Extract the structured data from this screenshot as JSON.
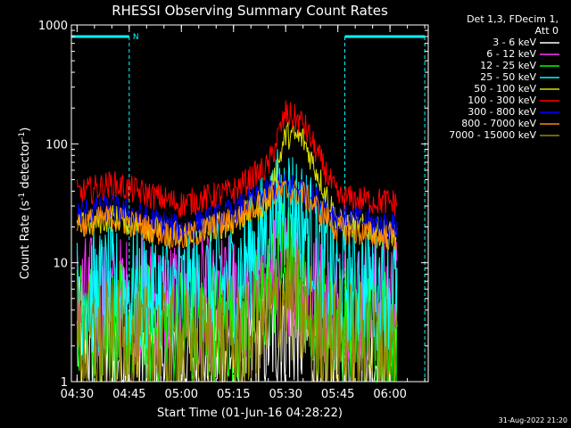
{
  "chart_data": {
    "type": "line",
    "title": "RHESSI Observing Summary Count Rates",
    "xlabel": "Start Time (01-Jun-16 04:28:22)",
    "ylabel_prefix": "Count Rate (s",
    "ylabel_mid": " detector",
    "ylabel_suffix": ")",
    "ylabel_exp": "-1",
    "yscale": "log",
    "ylim": [
      1,
      1000
    ],
    "xlim": [
      "04:28:22",
      "06:11"
    ],
    "x_tick_labels": [
      "04:30",
      "04:45",
      "05:00",
      "05:15",
      "05:30",
      "05:45",
      "06:00"
    ],
    "y_tick_labels": [
      "1",
      "10",
      "100",
      "1000"
    ],
    "y_ticks": [
      1,
      10,
      100,
      1000
    ],
    "legend_header": [
      "Det 1,3, FDecim 1,",
      "Att 0"
    ],
    "legend_placement": "right",
    "night_marker": "N",
    "night_intervals": [
      [
        "04:28:22",
        "04:45"
      ],
      [
        "05:47",
        "06:10"
      ]
    ],
    "series": [
      {
        "name": "3 - 6 keV",
        "color": "#ffffff",
        "points": [
          [
            "04:30",
            2.2
          ],
          [
            "05:00",
            1.6
          ],
          [
            "05:20",
            2.0
          ],
          [
            "05:30",
            3.0
          ],
          [
            "05:40",
            2.0
          ],
          [
            "06:02",
            1.5
          ]
        ]
      },
      {
        "name": "6 - 12 keV",
        "color": "#ff33ff",
        "points": [
          [
            "04:30",
            5.0
          ],
          [
            "05:00",
            4.8
          ],
          [
            "05:20",
            5.0
          ],
          [
            "05:30",
            9.0
          ],
          [
            "05:40",
            5.0
          ],
          [
            "06:02",
            5.0
          ]
        ]
      },
      {
        "name": "12 - 25 keV",
        "color": "#00ff00",
        "points": [
          [
            "04:30",
            3.0
          ],
          [
            "05:00",
            2.9
          ],
          [
            "05:20",
            3.2
          ],
          [
            "05:30",
            11.0
          ],
          [
            "05:40",
            3.5
          ],
          [
            "06:02",
            3.0
          ]
        ]
      },
      {
        "name": "25 - 50 keV",
        "color": "#00ffff",
        "points": [
          [
            "04:30",
            5.8
          ],
          [
            "05:00",
            5.6
          ],
          [
            "05:15",
            7.0
          ],
          [
            "05:25",
            20.0
          ],
          [
            "05:30",
            35.0
          ],
          [
            "05:35",
            22.0
          ],
          [
            "05:45",
            7.0
          ],
          [
            "06:02",
            6.0
          ]
        ]
      },
      {
        "name": "50 - 100 keV",
        "color": "#dddd00",
        "points": [
          [
            "04:30",
            20.0
          ],
          [
            "04:40",
            24.0
          ],
          [
            "05:00",
            17.0
          ],
          [
            "05:15",
            22.0
          ],
          [
            "05:25",
            33.0
          ],
          [
            "05:30",
            120.0
          ],
          [
            "05:35",
            110.0
          ],
          [
            "05:45",
            22.0
          ],
          [
            "06:02",
            17.0
          ]
        ]
      },
      {
        "name": "100 - 300 keV",
        "color": "#ff0000",
        "points": [
          [
            "04:30",
            38.0
          ],
          [
            "04:40",
            46.0
          ],
          [
            "05:00",
            31.0
          ],
          [
            "05:15",
            40.0
          ],
          [
            "05:25",
            65.0
          ],
          [
            "05:30",
            180.0
          ],
          [
            "05:35",
            150.0
          ],
          [
            "05:45",
            35.0
          ],
          [
            "06:02",
            32.0
          ]
        ]
      },
      {
        "name": "300 - 800 keV",
        "color": "#0000ff",
        "points": [
          [
            "04:30",
            26.0
          ],
          [
            "04:40",
            29.0
          ],
          [
            "05:00",
            19.0
          ],
          [
            "05:15",
            27.0
          ],
          [
            "05:25",
            40.0
          ],
          [
            "05:30",
            45.0
          ],
          [
            "05:35",
            42.0
          ],
          [
            "05:45",
            24.0
          ],
          [
            "06:02",
            20.0
          ]
        ]
      },
      {
        "name": "800 - 7000 keV",
        "color": "#ff8800",
        "points": [
          [
            "04:30",
            21.0
          ],
          [
            "04:40",
            24.0
          ],
          [
            "05:00",
            16.0
          ],
          [
            "05:15",
            23.0
          ],
          [
            "05:25",
            36.0
          ],
          [
            "05:30",
            40.0
          ],
          [
            "05:35",
            38.0
          ],
          [
            "05:45",
            19.0
          ],
          [
            "06:02",
            16.0
          ]
        ]
      },
      {
        "name": "7000 - 15000 keV",
        "color": "#998800",
        "points": [
          [
            "04:30",
            2.2
          ],
          [
            "05:00",
            1.8
          ],
          [
            "05:20",
            2.2
          ],
          [
            "05:30",
            5.5
          ],
          [
            "05:40",
            2.4
          ],
          [
            "06:02",
            1.8
          ]
        ]
      }
    ]
  },
  "footer_timestamp": "31-Aug-2022 21:20"
}
